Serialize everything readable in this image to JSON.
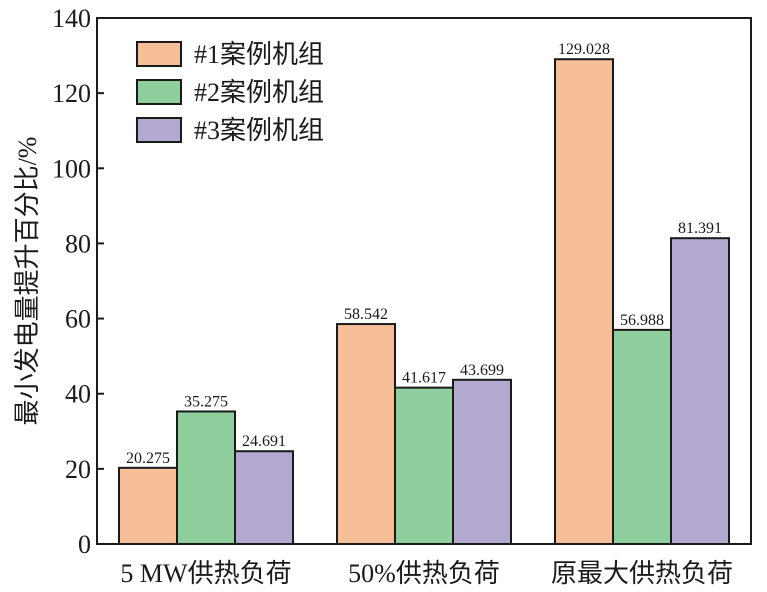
{
  "chart_data": {
    "type": "bar",
    "title": "",
    "xlabel": "",
    "ylabel": "最小发电量提升百分比/%",
    "ylim": [
      0,
      140
    ],
    "yticks": [
      0,
      20,
      40,
      60,
      80,
      100,
      120,
      140
    ],
    "categories": [
      "5 MW供热负荷",
      "50%供热负荷",
      "原最大供热负荷"
    ],
    "series": [
      {
        "name": "#1案例机组",
        "color": "#f7bf98",
        "values": [
          20.275,
          58.542,
          129.028
        ],
        "labels": [
          "20.275",
          "58.542",
          "129.028"
        ]
      },
      {
        "name": "#2案例机组",
        "color": "#8fcf9e",
        "values": [
          35.275,
          41.617,
          56.988
        ],
        "labels": [
          "35.275",
          "41.617",
          "56.988"
        ]
      },
      {
        "name": "#3案例机组",
        "color": "#b3a8d0",
        "values": [
          24.691,
          43.699,
          81.391
        ],
        "labels": [
          "24.691",
          "43.699",
          "81.391"
        ]
      }
    ],
    "legend_position": "top-left",
    "grid": false
  }
}
